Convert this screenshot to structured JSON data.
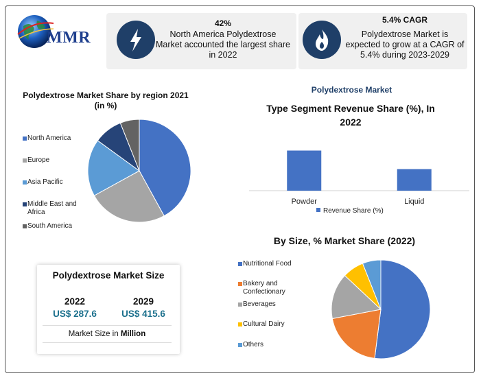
{
  "brand": {
    "logo_text": "MMR"
  },
  "stats": [
    {
      "value": "42%",
      "description": "North America Polydextrose Market accounted the largest share in 2022",
      "icon": "lightning-icon"
    },
    {
      "value": "5.4% CAGR",
      "description": "Polydextrose Market is expected to grow at a CAGR of 5.4% during 2023-2029",
      "icon": "flame-icon"
    }
  ],
  "market_size": {
    "title": "Polydextrose Market Size",
    "year_2022": "2022",
    "value_2022": "US$ 287.6",
    "year_2029": "2029",
    "value_2029": "US$ 415.6",
    "note_prefix": "Market Size in ",
    "note_bold": "Million"
  },
  "colors": {
    "blue": "#4472c4",
    "gray": "#a5a5a5",
    "lightblue": "#5b9bd5",
    "navy": "#264478",
    "darkgray": "#636363",
    "orange": "#ed7d31",
    "yellow": "#ffc000",
    "navy_dark": "#1f3f68",
    "teal": "#1a6f8c"
  },
  "chart_data": [
    {
      "type": "pie",
      "title": "Polydextrose Market Share by region 2021",
      "subtitle": "(in %)",
      "categories": [
        "North America",
        "Europe",
        "Asia Pacific",
        "Middle East and Africa",
        "South America"
      ],
      "values": [
        42,
        25,
        18,
        9,
        6
      ],
      "colors": [
        "#4472c4",
        "#a5a5a5",
        "#5b9bd5",
        "#264478",
        "#636363"
      ],
      "legend": "left"
    },
    {
      "type": "bar",
      "suptitle": "Polydextrose Market",
      "title": "Type Segment Revenue Share (%), In 2022",
      "categories": [
        "Powder",
        "Liquid"
      ],
      "series": [
        {
          "name": "Revenue Share (%)",
          "values": [
            65,
            35
          ]
        }
      ],
      "ylim": [
        0,
        100
      ],
      "colors": [
        "#4472c4"
      ],
      "legend": "bottom"
    },
    {
      "type": "pie",
      "title": "By Size, % Market Share (2022)",
      "categories": [
        "Nutritional Food",
        "Bakery and Confectionary",
        "Beverages",
        "Cultural Dairy",
        "Others"
      ],
      "values": [
        52,
        20,
        15,
        7,
        6
      ],
      "colors": [
        "#4472c4",
        "#ed7d31",
        "#a5a5a5",
        "#ffc000",
        "#5b9bd5"
      ],
      "legend": "left"
    }
  ]
}
